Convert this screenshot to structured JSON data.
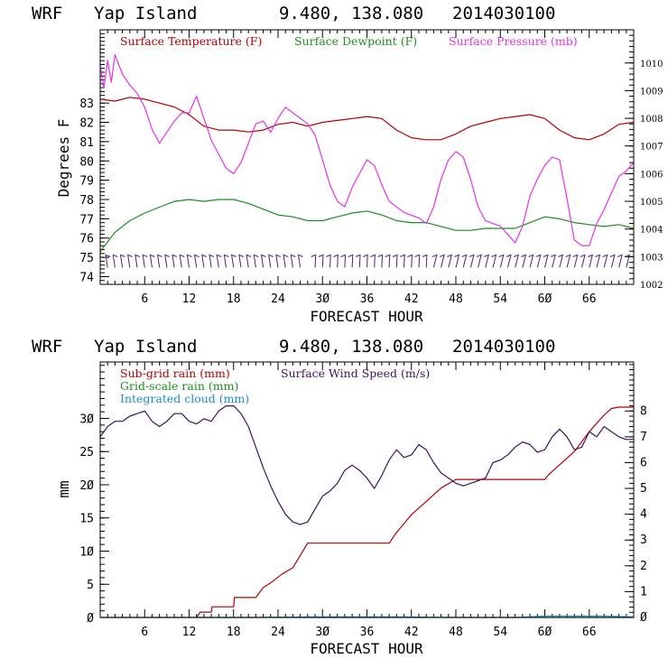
{
  "chart_data": [
    {
      "type": "line",
      "header": {
        "model": "WRF",
        "location": "Yap Island",
        "coords": "9.480, 138.080",
        "init": "2014030100"
      },
      "xlabel": "FORECAST HOUR",
      "ylabel": "Degrees F",
      "xlim": [
        0,
        72
      ],
      "ylim": [
        73.6,
        86.8
      ],
      "y2lim": [
        1002,
        1011.2
      ],
      "xticks": [
        6,
        12,
        18,
        24,
        30,
        36,
        42,
        48,
        54,
        60,
        66
      ],
      "xtick_labels": [
        "6",
        "12",
        "18",
        "24",
        "3Ø",
        "36",
        "42",
        "48",
        "54",
        "6Ø",
        "66"
      ],
      "yticks": [
        74,
        75,
        76,
        77,
        78,
        79,
        80,
        81,
        82,
        83
      ],
      "y2ticks": [
        1002,
        1003,
        1004,
        1005,
        1006,
        1007,
        1008,
        1009,
        1010
      ],
      "y2tick_labels": [
        "1002",
        "1003",
        "1004",
        "1005",
        "1006",
        "1007",
        "1008",
        "1009",
        "1010"
      ],
      "series": [
        {
          "name": "Surface Temperature (F)",
          "color": "#b40000",
          "axis": "left",
          "x": [
            0,
            2,
            4,
            6,
            8,
            10,
            12,
            14,
            16,
            18,
            20,
            22,
            24,
            26,
            28,
            30,
            32,
            34,
            36,
            38,
            40,
            42,
            44,
            46,
            48,
            50,
            52,
            54,
            56,
            58,
            60,
            62,
            64,
            66,
            68,
            70,
            72
          ],
          "values": [
            83.2,
            83.1,
            83.3,
            83.2,
            83.0,
            82.8,
            82.4,
            81.8,
            81.6,
            81.6,
            81.5,
            81.6,
            81.9,
            82.0,
            81.8,
            82.0,
            82.1,
            82.2,
            82.3,
            82.2,
            81.6,
            81.2,
            81.1,
            81.1,
            81.4,
            81.8,
            82.0,
            82.2,
            82.3,
            82.4,
            82.2,
            81.6,
            81.2,
            81.1,
            81.4,
            81.9,
            82.0
          ]
        },
        {
          "name": "Surface Dewpoint (F)",
          "color": "#1e8c1e",
          "axis": "left",
          "x": [
            0,
            2,
            4,
            6,
            8,
            10,
            12,
            14,
            16,
            18,
            20,
            22,
            24,
            26,
            28,
            30,
            32,
            34,
            36,
            38,
            40,
            42,
            44,
            46,
            48,
            50,
            52,
            54,
            56,
            58,
            60,
            62,
            64,
            66,
            68,
            70,
            72
          ],
          "values": [
            75.3,
            76.3,
            76.9,
            77.3,
            77.6,
            77.9,
            78.0,
            77.9,
            78.0,
            78.0,
            77.8,
            77.5,
            77.2,
            77.1,
            76.9,
            76.9,
            77.1,
            77.3,
            77.4,
            77.2,
            76.9,
            76.8,
            76.8,
            76.6,
            76.4,
            76.4,
            76.5,
            76.5,
            76.5,
            76.8,
            77.1,
            77.0,
            76.8,
            76.7,
            76.6,
            76.7,
            76.5
          ]
        },
        {
          "name": "Surface Pressure (mb)",
          "color": "#e632e6",
          "axis": "right",
          "x": [
            0,
            0.5,
            1,
            1.5,
            2,
            3,
            4,
            5,
            6,
            7,
            8,
            9,
            10,
            11,
            12,
            13,
            14,
            15,
            16,
            17,
            18,
            19,
            20,
            21,
            22,
            23,
            24,
            25,
            26,
            27,
            28,
            29,
            30,
            31,
            32,
            33,
            34,
            35,
            36,
            37,
            38,
            39,
            40,
            41,
            42,
            43,
            44,
            45,
            46,
            47,
            48,
            49,
            50,
            51,
            52,
            53,
            54,
            55,
            56,
            57,
            58,
            59,
            60,
            61,
            62,
            63,
            64,
            65,
            66,
            67,
            68,
            69,
            70,
            71,
            72
          ],
          "values": [
            1009.9,
            1009.1,
            1010.1,
            1009.3,
            1010.3,
            1009.6,
            1009.2,
            1008.9,
            1008.4,
            1007.6,
            1007.1,
            1007.5,
            1007.9,
            1008.2,
            1008.2,
            1008.8,
            1008.0,
            1007.2,
            1006.7,
            1006.2,
            1006.0,
            1006.4,
            1007.1,
            1007.8,
            1007.9,
            1007.5,
            1008.0,
            1008.4,
            1008.2,
            1008.0,
            1007.8,
            1007.4,
            1006.5,
            1005.6,
            1005.0,
            1004.8,
            1005.5,
            1006.0,
            1006.5,
            1006.3,
            1005.6,
            1005.0,
            1004.8,
            1004.6,
            1004.5,
            1004.4,
            1004.2,
            1004.8,
            1005.8,
            1006.5,
            1006.8,
            1006.6,
            1005.8,
            1004.8,
            1004.3,
            1004.2,
            1004.1,
            1003.8,
            1003.5,
            1004.1,
            1005.2,
            1005.8,
            1006.3,
            1006.6,
            1006.5,
            1005.1,
            1003.6,
            1003.4,
            1003.4,
            1004.2,
            1004.7,
            1005.3,
            1005.9,
            1006.1,
            1006.4
          ]
        }
      ],
      "wind_barbs": {
        "x": [
          1,
          2,
          3,
          4,
          5,
          6,
          7,
          8,
          9,
          10,
          11,
          12,
          13,
          14,
          15,
          16,
          17,
          18,
          19,
          20,
          21,
          22,
          23,
          24,
          25,
          26,
          27,
          29,
          30,
          31,
          32,
          33,
          34,
          35,
          36,
          37,
          38,
          39,
          40,
          41,
          42,
          43,
          44,
          45,
          46,
          47,
          48,
          49,
          50,
          51,
          52,
          53,
          54,
          55,
          56,
          57,
          58,
          59,
          60,
          61,
          62,
          63,
          64,
          65,
          66,
          67,
          68,
          69,
          70,
          71
        ],
        "y_value": 74.8
      }
    },
    {
      "type": "line",
      "header": {
        "model": "WRF",
        "location": "Yap Island",
        "coords": "9.480, 138.080",
        "init": "2014030100"
      },
      "xlabel": "FORECAST HOUR",
      "ylabel": "mm",
      "xlim": [
        0,
        72
      ],
      "ylim": [
        0,
        38.5
      ],
      "y2lim": [
        0,
        9.9
      ],
      "xticks": [
        6,
        12,
        18,
        24,
        30,
        36,
        42,
        48,
        54,
        60,
        66
      ],
      "xtick_labels": [
        "6",
        "12",
        "18",
        "24",
        "3Ø",
        "36",
        "42",
        "48",
        "54",
        "6Ø",
        "66"
      ],
      "yticks": [
        0,
        5,
        10,
        15,
        20,
        25,
        30
      ],
      "ytick_labels": [
        "Ø",
        "5",
        "1Ø",
        "15",
        "2Ø",
        "25",
        "3Ø"
      ],
      "y2ticks": [
        0,
        1,
        2,
        3,
        4,
        5,
        6,
        7,
        8
      ],
      "y2tick_labels": [
        "Ø",
        "1",
        "2",
        "3",
        "4",
        "5",
        "6",
        "7",
        "8"
      ],
      "series": [
        {
          "name": "Sub-grid rain (mm)",
          "color": "#b40000",
          "axis": "left",
          "x": [
            13,
            13.5,
            15,
            15.1,
            18,
            18.1,
            21,
            22,
            23,
            24.5,
            26,
            28,
            30,
            39,
            40,
            42,
            44,
            46,
            48,
            50,
            54,
            60,
            60.5,
            62,
            64,
            66,
            68,
            69,
            70,
            72
          ],
          "values": [
            0,
            0.8,
            0.8,
            1.6,
            1.6,
            3.0,
            3.0,
            4.5,
            5.2,
            6.5,
            7.5,
            11.2,
            11.2,
            11.2,
            12.8,
            15.5,
            17.5,
            19.5,
            20.8,
            20.8,
            20.8,
            20.8,
            21.5,
            23.0,
            25.0,
            28.0,
            30.5,
            31.5,
            31.7,
            31.7
          ]
        },
        {
          "name": "Grid-scale rain (mm)",
          "color": "#1e8c1e",
          "axis": "left",
          "x": [
            0,
            72
          ],
          "values": [
            0,
            0
          ]
        },
        {
          "name": "Integrated cloud (mm)",
          "color": "#1e8cc8",
          "axis": "left",
          "x": [
            0,
            10,
            20,
            30,
            40,
            48,
            56,
            60,
            64,
            68,
            72
          ],
          "values": [
            0.0,
            0.0,
            0.0,
            0.1,
            0.1,
            0.0,
            0.0,
            0.2,
            0.2,
            0.2,
            0.1
          ]
        },
        {
          "name": "Surface Wind Speed (m/s)",
          "color": "#3c1464",
          "axis": "right",
          "x": [
            0,
            1,
            2,
            3,
            4,
            5,
            6,
            7,
            8,
            9,
            10,
            11,
            12,
            13,
            14,
            15,
            16,
            17,
            18,
            19,
            20,
            21,
            22,
            23,
            24,
            25,
            26,
            27,
            28,
            29,
            30,
            31,
            32,
            33,
            34,
            35,
            36,
            37,
            38,
            39,
            40,
            41,
            42,
            43,
            44,
            45,
            46,
            47,
            48,
            49,
            50,
            51,
            52,
            53,
            54,
            55,
            56,
            57,
            58,
            59,
            60,
            61,
            62,
            63,
            64,
            65,
            66,
            67,
            68,
            69,
            70,
            71,
            72
          ],
          "values": [
            7.0,
            7.4,
            7.6,
            7.6,
            7.8,
            7.9,
            8.0,
            7.6,
            7.4,
            7.6,
            7.9,
            7.9,
            7.6,
            7.5,
            7.7,
            7.6,
            8.0,
            8.2,
            8.2,
            7.9,
            7.4,
            6.6,
            5.8,
            5.1,
            4.5,
            4.0,
            3.7,
            3.6,
            3.7,
            4.2,
            4.7,
            4.9,
            5.2,
            5.7,
            5.9,
            5.7,
            5.4,
            5.0,
            5.5,
            6.1,
            6.5,
            6.2,
            6.3,
            6.7,
            6.5,
            6.0,
            5.6,
            5.4,
            5.2,
            5.1,
            5.2,
            5.3,
            5.4,
            6.0,
            6.1,
            6.3,
            6.6,
            6.8,
            6.7,
            6.4,
            6.5,
            7.0,
            7.3,
            7.0,
            6.5,
            6.6,
            7.2,
            7.0,
            7.4,
            7.2,
            7.0,
            6.9,
            6.9
          ]
        }
      ]
    }
  ]
}
